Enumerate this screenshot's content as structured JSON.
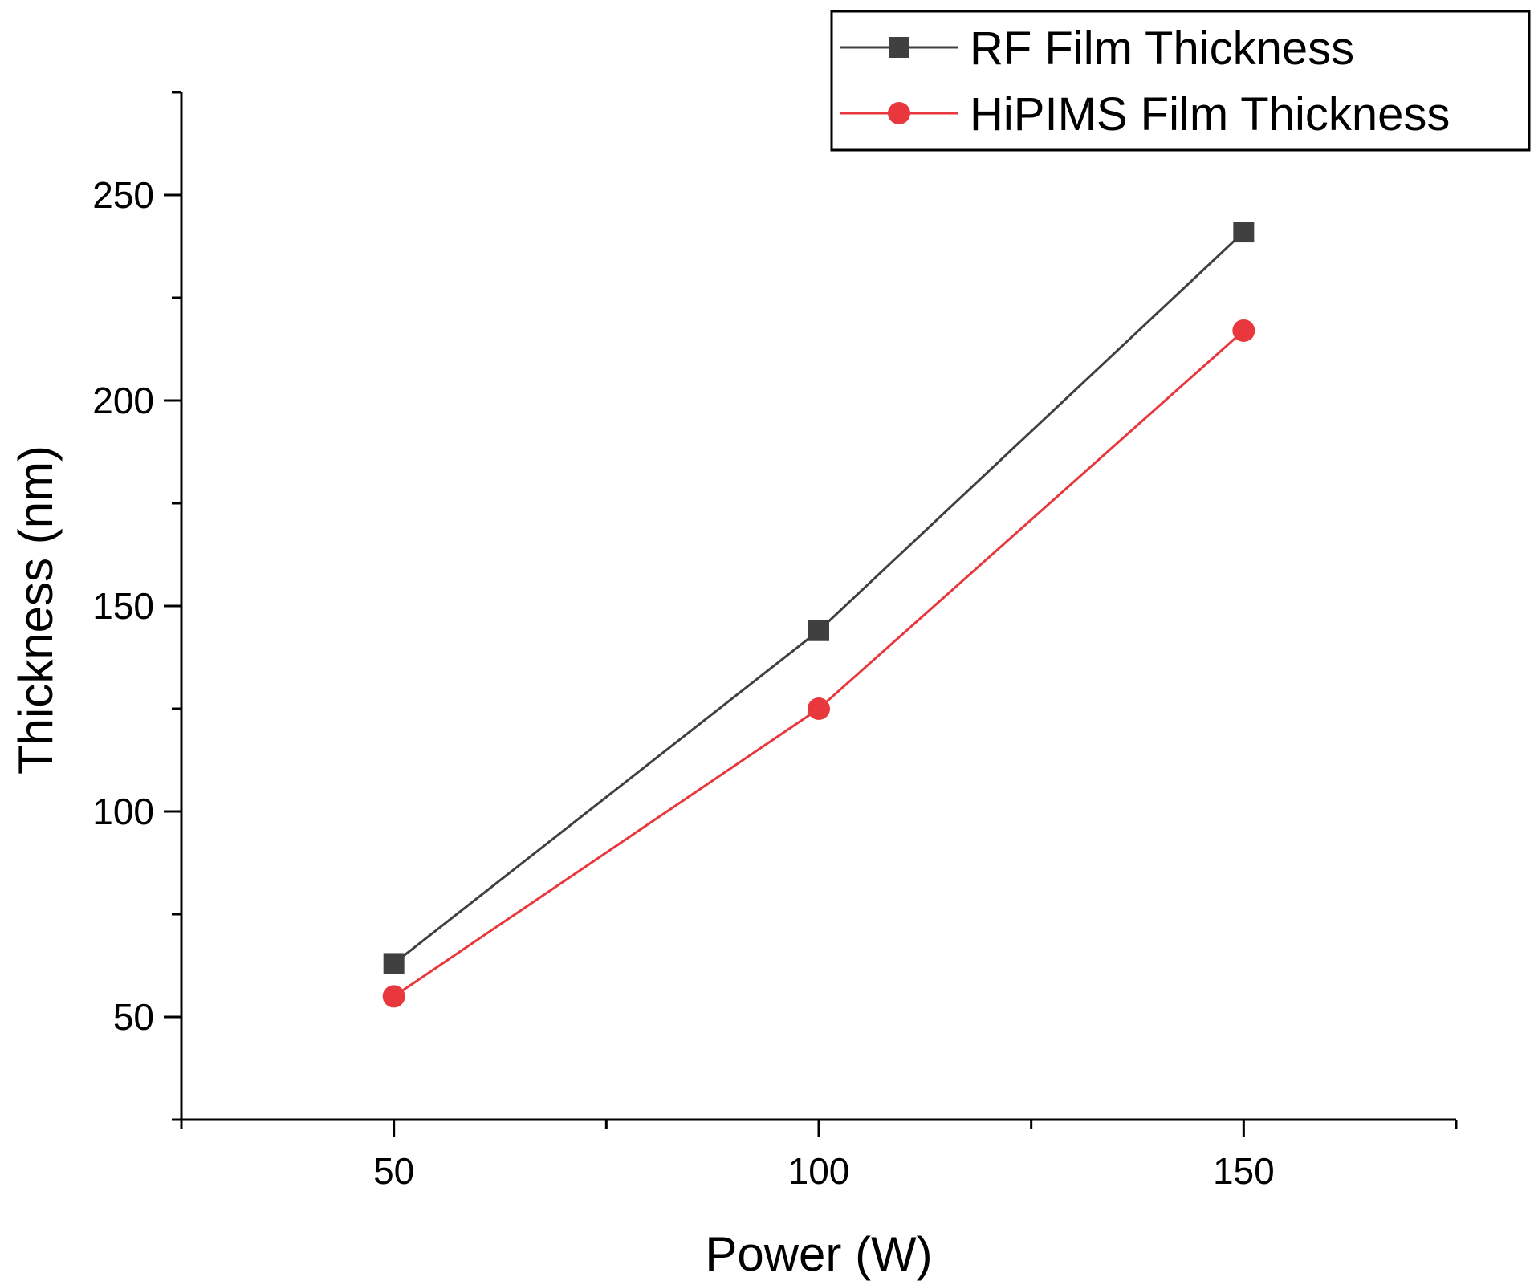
{
  "chart_data": {
    "type": "line",
    "title": "",
    "xlabel": "Power (W)",
    "ylabel": "Thickness (nm)",
    "xlim": [
      25,
      175
    ],
    "ylim": [
      25,
      275
    ],
    "x_ticks": [
      50,
      100,
      150
    ],
    "x_minor_ticks": [
      25,
      75,
      125,
      175
    ],
    "y_ticks": [
      50,
      100,
      150,
      200,
      250
    ],
    "y_minor_ticks": [
      25,
      75,
      125,
      175,
      225,
      275
    ],
    "x": [
      50,
      100,
      150
    ],
    "series": [
      {
        "name": "RF Film Thickness",
        "marker": "square",
        "color": "#404040",
        "values": [
          63,
          144,
          241
        ]
      },
      {
        "name": "HiPIMS Film Thickness",
        "marker": "circle",
        "color": "#e8383d",
        "values": [
          55,
          125,
          217
        ]
      }
    ],
    "legend_position": "top-right",
    "grid": false
  }
}
